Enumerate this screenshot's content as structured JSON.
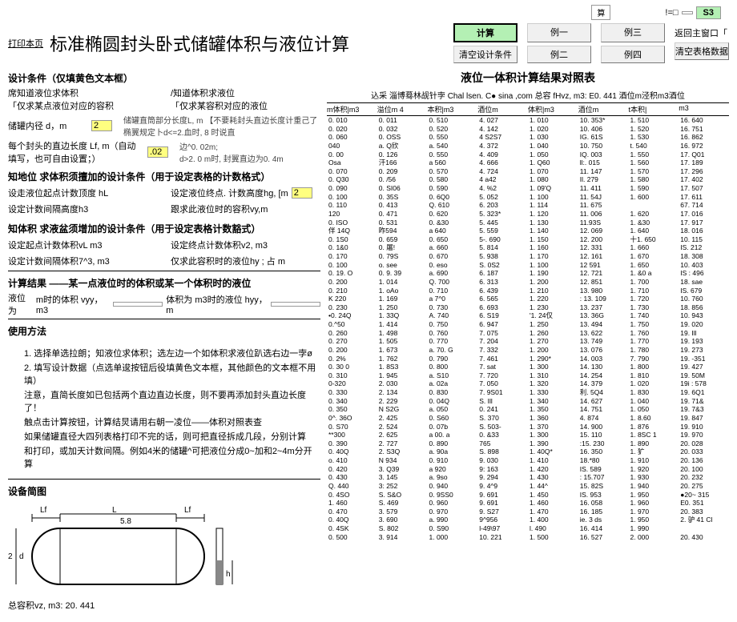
{
  "topbar": {
    "calc_char": "算",
    "excl": "!=□",
    "blank": "",
    "s3": "S3"
  },
  "header": {
    "print": "打印本页",
    "title": "标准椭圆封头卧式储罐体积与液位计算",
    "return": "返回主窗口「",
    "btns": {
      "calc": "计算",
      "ex1": "例一",
      "ex3": "例三",
      "clear1": "清空设计条件",
      "ex2": "例二",
      "ex4": "例四",
      "clear2": "清空表格数据"
    }
  },
  "left": {
    "sec1_title": "设计条件（仅填黄色文本框）",
    "row1a": "席知道液位求体积",
    "row1b": "/知道体积求液位",
    "row2a": "「仅求某点液位对应的容积",
    "row2b": "「仅求某容积对应的液位",
    "label_d": "储罐内径 d，m",
    "val_d": "2",
    "label_lf": "每个封头的直边长度 Lf, m（自动填写，也可自由设置；）",
    "val_lf": ".02",
    "note1": "储罐直筒部分长度L, m 【不要耗封头直边长度计重己了       椭翼规定卜d<=2.血时, 8 时说直",
    "note2": "边^0. 02m;\nd>2. 0 m时, 封翼直边为0. 4m",
    "sec2_title": "知地位    求体积须擅加的设计条件（用于设定表格的计数格式）",
    "row3a": "设走液位起点计数顶度 hL",
    "row3b": "设定液位终点. 计数高度hg, [m",
    "row4a": "设定计数间隔高度h3",
    "row4b": "跟求此液位时的容积vy,m",
    "val_hg": "2",
    "sec3_title": "知体积    求液盆须增加的设计条件（用于设定表格计数豁式）",
    "row5a": "设定起点计数体积vL m3",
    "row5b": "设定终点计数体积v2, m3",
    "row6a": "设定计数间隔体积7^3, m3",
    "row6b": "仅求此容积时的液位hy ; 占 m",
    "sec4_title": "计算结果    ——某一点液位时的体积或某一个体积时的液位",
    "result_label": "液位为",
    "result_v": "m时的体积 vyy，m3",
    "result_h": "体积为       m3时的液位 hyy，m",
    "sec5_title": "使用方法",
    "methods": [
      "1. 选择单选拉朗；知液位求体积；选左边一个如体积求液位趴选右边一孛ø",
      "2. 填写设计数据（点选单逡按钮后役填黄色文本框，其他颜色的文本框不用填）",
      "    注意，直简长度如已包括两个直边直边长度，则不要再添加封头直边长度了！",
      "    触点击计算按钮，计算结炅请用右朝一凌位——体积对照表查",
      "如果储罐直径大四列表格打印不完的话，则可把直径拆成几段，分别计算",
      "和打印，或加天计数间隔。例如4米的储罐^可把液位分成0~加和2~4m分开算"
    ],
    "sec6_title": "设备简图",
    "diagram": {
      "Lf": "Lf",
      "L": "L",
      "d": "d",
      "h": "h",
      "num1": "5.8",
      "num2": "2",
      "total": "总容积vz, m3: 20. 441"
    }
  },
  "right": {
    "title": "液位一体积计算结果对照表",
    "credit": "込采  淄博蓦林觇针孛  Chal lsen. C● sina ,com 总容  fHvz, m3: E0. 441 酒位m泾积m3酒位",
    "cols": [
      "m体积|m3",
      "溢位m 4",
      "本积|m3",
      "酒位m",
      "体积|m3",
      "酒位m",
      "t本积|",
      "m3"
    ],
    "data": [
      [
        "0. 010",
        "0. 011",
        "0. 510",
        "4. 027",
        "1. 010",
        "10. 353*",
        "1. 510",
        "16. 640"
      ],
      [
        "0. 020",
        "0. 032",
        "0. 520",
        "4. 142",
        "1. 020",
        "10. 406",
        "1. 520",
        "16. 751"
      ],
      [
        "0. 060",
        "0. OSS",
        "0. 550",
        "4 S2S7",
        "1. 030",
        "IG. 61S",
        "1. 530",
        "16. 862"
      ],
      [
        "040",
        "a.  Q欣",
        "a.  540",
        "4. 372",
        "1. 040",
        "10. 750",
        "t. 540",
        "16. 972"
      ],
      [
        "0. 00",
        "0. 126",
        "0. 550",
        "4. 409",
        "1. 050",
        "IQ. 003",
        "1. 550",
        "17. Q01"
      ],
      [
        "Osa",
        "汗166",
        "a 560",
        "4. 666",
        "1. Q60",
        "ll:. 015",
        "1. 560",
        "17. 189"
      ],
      [
        "0. 070",
        "0. 209",
        "0. 570",
        "4. 724",
        "1. 070",
        "11. 147",
        "1. 570",
        "17. 296"
      ],
      [
        "0. Q30",
        "0. /56",
        "0. 580",
        "  4 a42",
        "1. 080",
        "Il. 279",
        "1. 580",
        "17. 402"
      ],
      [
        "0. 090",
        "0. SI06",
        "0. 590",
        "4. %2",
        "1. 09'Q",
        "  11. 411",
        "1. 590",
        "17. 507"
      ],
      [
        "0. 100",
        "0. 35S",
        "0. 6Q0",
        "5. 052",
        "1. 100",
        "11. 54J",
        "1. 600",
        "17. 611"
      ],
      [
        "0. 110",
        "0. 413",
        "Q. 610",
        "6. 203",
        "1. 114",
        "11. 675",
        "",
        "67. 714"
      ],
      [
        "120",
        "0. 471",
        "0. 620",
        "5. 323*",
        "1. 120",
        "11. 006",
        "1. 620",
        "17. 016"
      ],
      [
        "0. ISO",
        "0. 531",
        "0. &30",
        "5. 445",
        "1. 130",
        "11.93S",
        "1. &30",
        "17. 917"
      ],
      [
        "伴 14Q",
        "昨594",
        "a 640",
        "5. 559",
        "1. 140",
        "12. 069",
        " 1. 640",
        "18. 016"
      ],
      [
        "0. 1S0",
        "0. 659",
        "0. 650",
        "5-. 690",
        "1. 150",
        "12. 200",
        "十1. 650",
        "10. 115"
      ],
      [
        "0. 1&0",
        "0. 屠!",
        "a. 660",
        "5. 814",
        "1. 160",
        "12. 331",
        "1. 660",
        "IS. 212"
      ],
      [
        "0. 170",
        "0. 79S",
        "0. 670",
        "5. 938",
        "1. 170",
        "12. 161",
        "1. 670",
        "18. 308"
      ],
      [
        "0. 100",
        "o. see",
        "0. eso",
        "S. 0S2",
        "1. 100",
        "12 591",
        "1. 650",
        "10. 403"
      ],
      [
        "0. 19. O",
        "0. 9. 39",
        "a. 690",
        "6. 187",
        "1. 190",
        "12. 721",
        "1. &0 a",
        "IS : 496"
      ],
      [
        "0. 200",
        "1. 014",
        "Q. 700",
        "6. 313",
        "1. 200",
        "12. 851",
        "1. 700",
        "18. sae"
      ],
      [
        "0. 210",
        "1. oAo",
        "0. 710",
        "6. 439",
        "1. 210",
        "13. 980",
        "1. 710",
        "IS. 679"
      ],
      [
        "K 220",
        "1. 169",
        "a 7^0",
        "6. 565",
        "1. 220",
        ": 13. 109",
        "1. 720",
        "10. 760"
      ],
      [
        " 0.  230",
        "1. 250",
        "0. 730",
        "6. 693",
        "1. 230",
        "13. 237",
        "1. 730",
        "18. 856"
      ],
      [
        "•0. 24Q",
        "1. 33Q",
        "A. 740",
        "6. S19",
        "'1. 24仅",
        "13. 36G",
        "1. 740",
        "10. 943"
      ],
      [
        "0.^50",
        "1. 414",
        "0. 750",
        "6. 947",
        "1. 250",
        "13. 494",
        "1. 750",
        "19. 020"
      ],
      [
        "0. 260",
        "1. 498",
        "0. 760",
        "7. 075",
        "1. 260",
        "13. 622",
        "1. 760",
        "19. Ill"
      ],
      [
        "0. 270",
        "1. 505",
        "0. 770",
        "7. 204",
        "1. 270",
        "13. 749",
        "1. 770",
        "19. 193"
      ],
      [
        "0. 200",
        "1. 673",
        "a. 70. G",
        "7. 332",
        "1. 200",
        "13. 076",
        "1. 780",
        "19. 273"
      ],
      [
        "0. 2%",
        "1. 762",
        "0. 790",
        "7. 461",
        "1. 290*",
        "14. 003",
        "7. 790",
        "19. -351"
      ],
      [
        "  0. 30 0",
        "1. 8S3",
        "0. 800",
        "7. sat",
        "1. 300",
        "14. 130",
        "1. 800",
        "19. 427"
      ],
      [
        "0. 310",
        "1. 945",
        "a. S10",
        "7. 720",
        "1. 310",
        "14. 254",
        "1. 810",
        "19. 50M"
      ],
      [
        "0-320",
        "2. 030",
        "a. 02a",
        "7. 050",
        "1. 320",
        "14. 379",
        "1. 020",
        "19i : 578"
      ],
      [
        "0. 330",
        "2. 134",
        "0. 830",
        "7. 9S01",
        "1. 330",
        "利. 5Q4",
        "1. 830",
        "19. 6Q1"
      ],
      [
        "0. 340",
        "2. 229",
        "0. 04Q",
        "S. Ill",
        "1. 340",
        "14. 627",
        "1. 040",
        "19. 71&"
      ],
      [
        "0. 350",
        "N S2G",
        "a. 050",
        "0. 241",
        "1. 350",
        "14. 751",
        "1. 050",
        "19. 7&3"
      ],
      [
        "0^. 36O",
        "2. 425",
        "0. S60",
        "S. 370",
        "1. 360",
        "4. 874",
        "1. 8.60",
        "  19. 847"
      ],
      [
        "0. S70",
        "2. 524",
        "0. 07b",
        "S. 503-",
        "1. 370",
        "14. 900",
        "1. 876",
        "19. 910"
      ],
      [
        "**300",
        "2. 625",
        "a 00. a",
        "  0. &33",
        "1. 300",
        "15.  110",
        "1. 8SC 1",
        "19. 970"
      ],
      [
        "  0.   390",
        "2. 727",
        "0. 890",
        "   765",
        "  1.  390",
        "  :15. 230",
        "1. 890",
        "20. 028"
      ],
      [
        "0. 40Q",
        "2. S3Q",
        "a. 90a",
        "S. 898",
        "1. 40Q*",
        "  16. 350",
        "1. 犷",
        "20. 033"
      ],
      [
        "               o. 410",
        "N 934",
        "0. 910",
        "9. 030",
        "1. 410",
        "18.*80",
        "1. 910",
        "20. 136"
      ],
      [
        "0. 420",
        "3. Q39",
        "a 920",
        "9: 163",
        "1. 420",
        "IS. 589",
        "1. 920",
        "20. 100"
      ],
      [
        "0. 430",
        "3. 145",
        "a. 9so",
        "9. 294",
        "1. 430",
        ":  15.707",
        "1. 930",
        " 20. 232"
      ],
      [
        "Q. 440",
        "3: 252",
        "0. 940",
        "9. 4^9",
        "1. 44^",
        "  15. 82S",
        "1. 940",
        "20. 275"
      ],
      [
        "0. 4SO",
        "S. S&O",
        "0. 9SS0",
        "9. 691",
        "1. 450",
        "IS. 953",
        "1. 950",
        "●20~ 315"
      ],
      [
        "1. 460",
        "S. 469",
        "0. 960",
        "9. 691",
        "1. 460",
        "16. 058",
        "1. 960",
        "E0. 351"
      ],
      [
        "0. 470",
        "3. 579",
        "0. 970",
        "9. S27",
        "1. 470",
        "16. 185",
        "1. 970",
        "20. 383"
      ],
      [
        "0. 40Q",
        "3. 690",
        "a. 990",
        "9^956",
        "1. 400",
        "ie. 3 ds",
        "1. 950",
        "2. 驴 41 Cl"
      ],
      [
        "0. 4SK",
        "S. 802",
        "0. S90",
        "l-49\\97",
        "l. 490",
        "16. 414",
        "1. 990",
        ""
      ],
      [
        "0. 500",
        "3. 914",
        "1. 000",
        "10. 221",
        "1. 500",
        "16. 527",
        "2. 000",
        "20. 430"
      ]
    ]
  }
}
